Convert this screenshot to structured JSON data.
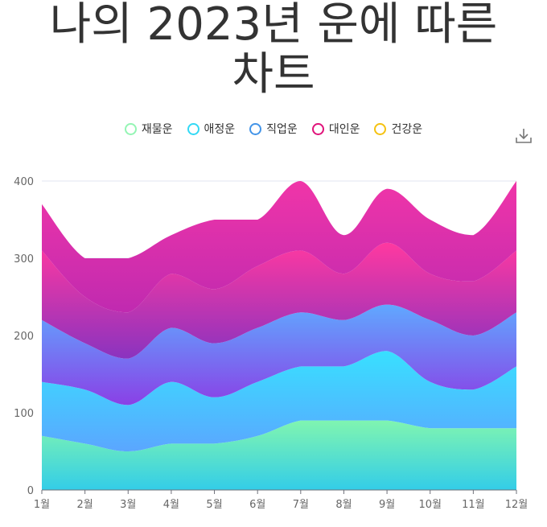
{
  "title_line1": "나의 2023년 운에 따른",
  "title_line2": "차트",
  "chart_data": {
    "type": "area",
    "stacked": true,
    "smooth": true,
    "categories": [
      "1월",
      "2월",
      "3월",
      "4월",
      "5월",
      "6월",
      "7월",
      "8월",
      "9월",
      "10월",
      "11월",
      "12월"
    ],
    "ylim": [
      0,
      400
    ],
    "yticks": [
      0,
      100,
      200,
      300,
      400
    ],
    "legend_position": "top-center",
    "series": [
      {
        "name": "재물운",
        "values": [
          70,
          60,
          50,
          60,
          60,
          70,
          90,
          90,
          90,
          80,
          80,
          80
        ],
        "color": "#94f5b4",
        "gradient": [
          "#80f5b0",
          "#33cde8"
        ]
      },
      {
        "name": "애정운",
        "values": [
          70,
          70,
          60,
          80,
          60,
          70,
          70,
          70,
          90,
          60,
          50,
          80
        ],
        "color": "#33d9f5",
        "gradient": [
          "#38e0ff",
          "#5ba6ff"
        ]
      },
      {
        "name": "직업운",
        "values": [
          80,
          60,
          60,
          70,
          70,
          70,
          70,
          60,
          60,
          80,
          70,
          70
        ],
        "color": "#4394e8",
        "gradient": [
          "#60a8ff",
          "#8a40e6"
        ]
      },
      {
        "name": "대인운",
        "values": [
          90,
          60,
          60,
          70,
          70,
          80,
          80,
          60,
          80,
          60,
          70,
          80
        ],
        "color": "#e0137a",
        "gradient": [
          "#ff38a0",
          "#8a33bf"
        ]
      },
      {
        "name": "건강운",
        "values": [
          60,
          50,
          70,
          50,
          90,
          60,
          90,
          50,
          70,
          70,
          60,
          90
        ],
        "color": "#f5c211",
        "gradient": [
          "#f035a8",
          "#c02ab0"
        ]
      }
    ]
  },
  "download_icon": "download-icon"
}
